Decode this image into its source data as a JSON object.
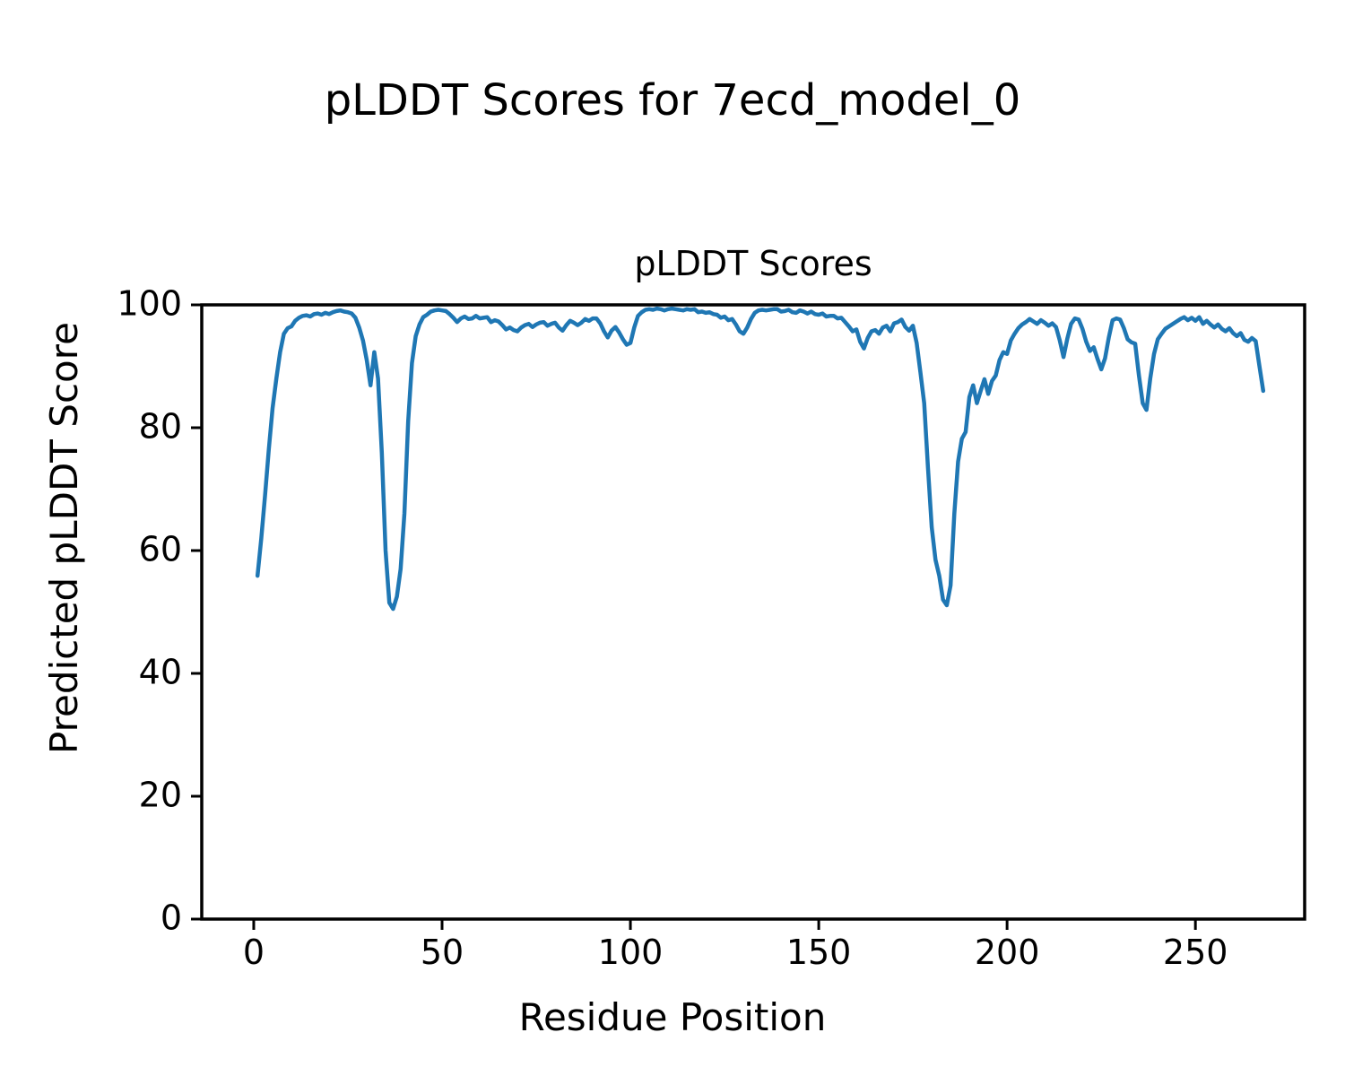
{
  "figure": {
    "suptitle": "pLDDT Scores for 7ecd_model_0"
  },
  "chart_data": {
    "type": "line",
    "title": "pLDDT Scores",
    "xlabel": "Residue Position",
    "ylabel": "Predicted pLDDT Score",
    "x_ticks": [
      0,
      50,
      100,
      150,
      200,
      250
    ],
    "y_ticks": [
      0,
      20,
      40,
      60,
      80,
      100
    ],
    "xlim": [
      -13.8,
      279.0
    ],
    "ylim": [
      0,
      100
    ],
    "grid": false,
    "legend_position": "none",
    "line_color": "#1f77b4",
    "axis_color": "#000000",
    "series": [
      {
        "name": "pLDDT",
        "x_start": 1,
        "x_step": 1,
        "values": [
          55.9,
          62.0,
          69.0,
          76.5,
          83.2,
          88.0,
          92.3,
          95.3,
          96.2,
          96.5,
          97.4,
          97.9,
          98.2,
          98.3,
          98.1,
          98.5,
          98.6,
          98.4,
          98.7,
          98.5,
          98.8,
          99.0,
          99.1,
          98.9,
          98.8,
          98.6,
          97.9,
          96.3,
          94.2,
          91.0,
          86.9,
          92.3,
          88.0,
          76.0,
          60.0,
          51.5,
          50.5,
          52.5,
          57.0,
          66.0,
          81.0,
          90.5,
          94.9,
          96.8,
          98.0,
          98.4,
          98.9,
          99.1,
          99.2,
          99.1,
          99.0,
          98.5,
          97.9,
          97.2,
          97.8,
          98.1,
          97.7,
          97.8,
          98.2,
          97.8,
          97.9,
          98.0,
          97.2,
          97.5,
          97.3,
          96.7,
          96.0,
          96.3,
          95.9,
          95.7,
          96.3,
          96.7,
          96.9,
          96.4,
          96.8,
          97.1,
          97.2,
          96.6,
          96.9,
          97.1,
          96.3,
          95.8,
          96.7,
          97.4,
          97.1,
          96.7,
          97.1,
          97.7,
          97.4,
          97.8,
          97.8,
          97.0,
          95.7,
          94.7,
          95.8,
          96.4,
          95.5,
          94.4,
          93.5,
          93.8,
          96.3,
          98.2,
          98.8,
          99.2,
          99.3,
          99.2,
          99.4,
          99.3,
          99.1,
          99.3,
          99.4,
          99.3,
          99.2,
          99.1,
          99.3,
          99.2,
          99.3,
          98.8,
          98.9,
          98.7,
          98.8,
          98.5,
          98.4,
          97.9,
          98.1,
          97.5,
          97.7,
          96.8,
          95.7,
          95.3,
          96.3,
          97.7,
          98.7,
          99.1,
          99.2,
          99.1,
          99.2,
          99.3,
          99.3,
          98.9,
          99.0,
          99.2,
          98.8,
          98.7,
          99.1,
          98.9,
          98.6,
          98.9,
          98.5,
          98.4,
          98.6,
          98.1,
          98.2,
          98.2,
          97.8,
          97.9,
          97.2,
          96.5,
          95.7,
          96.0,
          94.0,
          92.9,
          94.6,
          95.7,
          95.9,
          95.3,
          96.3,
          96.6,
          95.7,
          97.0,
          97.2,
          97.6,
          96.4,
          95.8,
          96.6,
          93.8,
          89.0,
          84.0,
          73.5,
          63.8,
          58.5,
          55.9,
          52.0,
          51.1,
          54.3,
          66.0,
          74.5,
          78.2,
          79.3,
          85.0,
          86.9,
          84.0,
          86.0,
          87.9,
          85.5,
          87.6,
          88.5,
          91.0,
          92.3,
          92.0,
          94.2,
          95.3,
          96.2,
          96.8,
          97.2,
          97.7,
          97.3,
          96.9,
          97.5,
          97.1,
          96.6,
          97.0,
          96.4,
          94.2,
          91.5,
          94.5,
          96.9,
          97.8,
          97.6,
          96.1,
          94.0,
          92.5,
          93.1,
          91.2,
          89.5,
          91.3,
          94.7,
          97.5,
          97.8,
          97.6,
          96.2,
          94.4,
          93.9,
          93.7,
          88.5,
          84.0,
          82.9,
          88.0,
          92.0,
          94.4,
          95.3,
          96.1,
          96.5,
          96.9,
          97.3,
          97.7,
          98.0,
          97.5,
          97.9,
          97.4,
          98.0,
          96.9,
          97.4,
          96.8,
          96.3,
          96.8,
          96.1,
          95.7,
          96.2,
          95.4,
          94.9,
          95.4,
          94.3,
          94.0,
          94.6,
          94.1,
          90.0,
          86.0
        ]
      }
    ]
  }
}
